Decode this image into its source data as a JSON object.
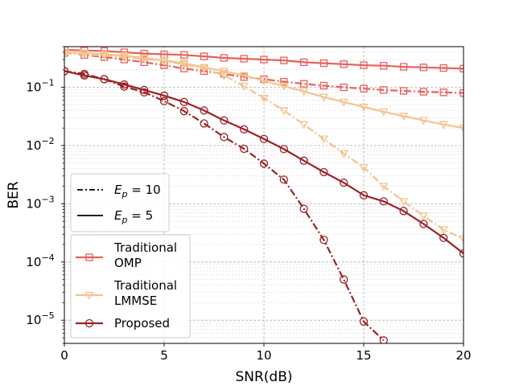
{
  "chart_data": {
    "type": "line",
    "title": "",
    "xlabel": "SNR(dB)",
    "ylabel": "BER",
    "xlim": [
      0,
      20
    ],
    "ylim": [
      4e-06,
      0.5
    ],
    "yscale": "log",
    "grid": true,
    "x_ticks": [
      {
        "value": 0,
        "label": "0"
      },
      {
        "value": 5,
        "label": "5"
      },
      {
        "value": 10,
        "label": "10"
      },
      {
        "value": 15,
        "label": "15"
      },
      {
        "value": 20,
        "label": "20"
      }
    ],
    "y_ticks": [
      {
        "value": 1e-05,
        "base": "10",
        "exp": "−5"
      },
      {
        "value": 0.0001,
        "base": "10",
        "exp": "−4"
      },
      {
        "value": 0.001,
        "base": "10",
        "exp": "−3"
      },
      {
        "value": 0.01,
        "base": "10",
        "exp": "−2"
      },
      {
        "value": 0.1,
        "base": "10",
        "exp": "−1"
      }
    ],
    "x": [
      0,
      1,
      2,
      3,
      4,
      5,
      6,
      7,
      8,
      9,
      10,
      11,
      12,
      13,
      14,
      15,
      16,
      17,
      18,
      19,
      20
    ],
    "series": [
      {
        "name": "Traditional OMP",
        "method": "omp",
        "ep": 5,
        "color": "#e8615c",
        "marker": "square",
        "linestyle": "solid",
        "values": [
          0.44,
          0.43,
          0.42,
          0.4,
          0.38,
          0.37,
          0.36,
          0.34,
          0.32,
          0.31,
          0.3,
          0.29,
          0.27,
          0.26,
          0.25,
          0.24,
          0.235,
          0.225,
          0.22,
          0.215,
          0.21
        ]
      },
      {
        "name": "Traditional OMP",
        "method": "omp",
        "ep": 10,
        "color": "#e8615c",
        "marker": "square",
        "linestyle": "dashdot",
        "values": [
          0.39,
          0.36,
          0.33,
          0.3,
          0.27,
          0.24,
          0.21,
          0.19,
          0.17,
          0.15,
          0.138,
          0.125,
          0.115,
          0.107,
          0.1,
          0.095,
          0.09,
          0.087,
          0.084,
          0.082,
          0.08
        ]
      },
      {
        "name": "Traditional LMMSE",
        "method": "lmmse",
        "ep": 5,
        "color": "#f3c48f",
        "marker": "triangle-down",
        "linestyle": "solid",
        "values": [
          0.4,
          0.39,
          0.37,
          0.35,
          0.32,
          0.29,
          0.26,
          0.22,
          0.19,
          0.16,
          0.13,
          0.105,
          0.085,
          0.068,
          0.056,
          0.046,
          0.038,
          0.032,
          0.027,
          0.023,
          0.02
        ]
      },
      {
        "name": "Traditional LMMSE",
        "method": "lmmse",
        "ep": 10,
        "color": "#f3c48f",
        "marker": "triangle-down",
        "linestyle": "dashdot",
        "values": [
          0.38,
          0.37,
          0.35,
          0.33,
          0.31,
          0.28,
          0.25,
          0.21,
          0.16,
          0.105,
          0.065,
          0.04,
          0.023,
          0.013,
          0.0073,
          0.0042,
          0.002,
          0.0011,
          0.00062,
          0.00036,
          0.00025
        ]
      },
      {
        "name": "Proposed",
        "method": "proposed",
        "ep": 5,
        "color": "#9b2226",
        "marker": "circle",
        "linestyle": "solid",
        "values": [
          0.19,
          0.16,
          0.138,
          0.112,
          0.09,
          0.072,
          0.056,
          0.04,
          0.027,
          0.019,
          0.013,
          0.0087,
          0.0055,
          0.0035,
          0.0023,
          0.0014,
          0.0011,
          0.00075,
          0.00045,
          0.00026,
          0.00014
        ]
      },
      {
        "name": "Proposed",
        "method": "proposed",
        "ep": 10,
        "color": "#9b2226",
        "marker": "circle",
        "linestyle": "dashdot",
        "values": [
          0.19,
          0.17,
          0.138,
          0.103,
          0.082,
          0.058,
          0.039,
          0.024,
          0.014,
          0.0088,
          0.0049,
          0.0026,
          0.00082,
          0.00024,
          5e-05,
          9.5e-06,
          4.5e-06,
          null,
          null,
          null,
          null
        ]
      }
    ],
    "legends": {
      "linestyle": {
        "position": "center-left",
        "entries": [
          {
            "linestyle": "dashdot",
            "symbol": "E",
            "sub": "p",
            "rest": " = 10"
          },
          {
            "linestyle": "solid",
            "symbol": "E",
            "sub": "p",
            "rest": " = 5"
          }
        ]
      },
      "methods": {
        "position": "lower-left",
        "entries": [
          {
            "method": "omp",
            "lines": [
              "Traditional",
              "OMP"
            ],
            "color": "#e8615c",
            "marker": "square"
          },
          {
            "method": "lmmse",
            "lines": [
              "Traditional",
              "LMMSE"
            ],
            "color": "#f3c48f",
            "marker": "triangle-down"
          },
          {
            "method": "proposed",
            "lines": [
              "Proposed"
            ],
            "color": "#9b2226",
            "marker": "circle"
          }
        ]
      }
    }
  }
}
